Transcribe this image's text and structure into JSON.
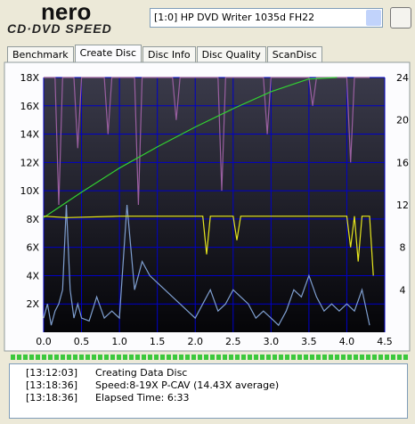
{
  "header": {
    "logo_top": "nero",
    "logo_bottom": "CD·DVD SPEED",
    "drive": "[1:0]  HP DVD Writer 1035d FH22"
  },
  "tabs": [
    "Benchmark",
    "Create Disc",
    "Disc Info",
    "Disc Quality",
    "ScanDisc"
  ],
  "chart_data": {
    "type": "line",
    "xlim": [
      0,
      4.5
    ],
    "xticks": [
      {
        "value": 0,
        "label": "0.0"
      },
      0.5,
      {
        "value": 1,
        "label": "1.0"
      },
      1.5,
      {
        "value": 2,
        "label": "2.0"
      },
      2.5,
      {
        "value": 3,
        "label": "3.0"
      },
      3.5,
      {
        "value": 4,
        "label": "4.0"
      },
      4.5
    ],
    "ylim": [
      0,
      18
    ],
    "yticks": [
      {
        "value": 2,
        "label": "2X"
      },
      {
        "value": 4,
        "label": "4X"
      },
      {
        "value": 6,
        "label": "6X"
      },
      {
        "value": 8,
        "label": "8X"
      },
      {
        "value": 10,
        "label": "10X"
      },
      {
        "value": 12,
        "label": "12X"
      },
      {
        "value": 14,
        "label": "14X"
      },
      {
        "value": 16,
        "label": "16X"
      },
      {
        "value": 18,
        "label": "18X"
      }
    ],
    "y2lim": [
      0,
      24
    ],
    "y2ticks": [
      4,
      8,
      12,
      16,
      20,
      24
    ],
    "grid": true,
    "series": [
      {
        "color": "#7f9fd0",
        "x": [
          0,
          0.05,
          0.1,
          0.15,
          0.2,
          0.25,
          0.3,
          0.35,
          0.4,
          0.45,
          0.5,
          0.6,
          0.7,
          0.8,
          0.9,
          1.0,
          1.1,
          1.2,
          1.3,
          1.4,
          1.5,
          1.6,
          1.7,
          1.8,
          1.9,
          2.0,
          2.1,
          2.2,
          2.3,
          2.4,
          2.5,
          2.6,
          2.7,
          2.8,
          2.9,
          3.0,
          3.1,
          3.2,
          3.3,
          3.4,
          3.5,
          3.6,
          3.7,
          3.8,
          3.9,
          4.0,
          4.1,
          4.2,
          4.3
        ],
        "values": [
          1,
          2,
          0.5,
          1.5,
          2,
          3,
          9,
          3,
          1,
          2,
          1,
          0.8,
          2.5,
          1,
          1.5,
          1,
          9,
          3,
          5,
          4,
          3.5,
          3,
          2.5,
          2,
          1.5,
          1,
          2,
          3,
          1.5,
          2,
          3,
          2.5,
          2,
          1,
          1.5,
          1,
          0.5,
          1.5,
          3,
          2.5,
          4,
          2.5,
          1.5,
          2,
          1.5,
          2,
          1.5,
          3,
          0.5
        ]
      },
      {
        "color": "#9a5fa0",
        "x": [
          0,
          0.15,
          0.2,
          0.25,
          0.4,
          0.45,
          0.5,
          0.8,
          0.85,
          0.9,
          1.2,
          1.25,
          1.3,
          1.7,
          1.75,
          1.8,
          2.3,
          2.35,
          2.4,
          2.9,
          2.95,
          3.0,
          3.5,
          3.55,
          3.6,
          4.0,
          4.05,
          4.1,
          4.3
        ],
        "values": [
          18,
          18,
          9,
          18,
          18,
          13,
          18,
          18,
          14,
          18,
          18,
          9,
          18,
          18,
          15,
          18,
          18,
          10,
          18,
          18,
          14,
          18,
          18,
          16,
          18,
          18,
          12,
          18,
          18
        ]
      },
      {
        "color": "#32d232",
        "x": [
          0,
          0.5,
          1,
          1.5,
          2,
          2.5,
          3,
          3.5,
          3.87
        ],
        "values": [
          8.1,
          9.9,
          11.6,
          13.1,
          14.5,
          15.8,
          17,
          17.9,
          18
        ]
      },
      {
        "color": "#e6e61e",
        "x": [
          0,
          0.3,
          1,
          1.5,
          2,
          2.1,
          2.15,
          2.2,
          2.5,
          2.55,
          2.6,
          3,
          3.5,
          4,
          4.05,
          4.1,
          4.15,
          4.2,
          4.3,
          4.35
        ],
        "values": [
          8.2,
          8.1,
          8.2,
          8.2,
          8.2,
          8.2,
          5.5,
          8.2,
          8.2,
          6.5,
          8.2,
          8.2,
          8.2,
          8.2,
          6,
          8.2,
          5,
          8.2,
          8.2,
          4
        ]
      }
    ]
  },
  "log": [
    [
      "[13:12:03]",
      "Creating Data Disc"
    ],
    [
      "[13:18:36]",
      "Speed:8-19X P-CAV (14.43X average)"
    ],
    [
      "[13:18:36]",
      "Elapsed Time:  6:33"
    ]
  ]
}
